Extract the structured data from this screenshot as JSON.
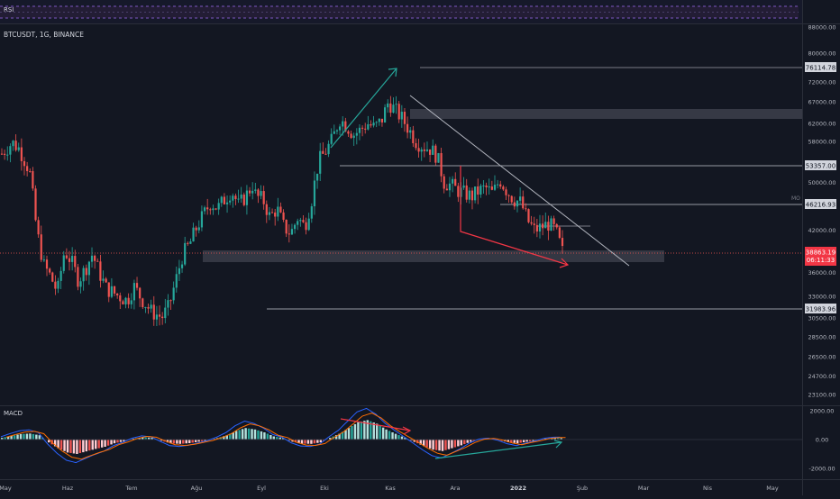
{
  "rsi": {
    "label": "RSI"
  },
  "symbol": {
    "label": "BTCUSDT, 1G, BINANCE"
  },
  "macd": {
    "label": "MACD"
  },
  "last_price": {
    "value": "38863.19",
    "countdown": "06:11:33"
  },
  "mo_label": "MO",
  "chart_data": [
    {
      "type": "candlestick",
      "title": "BTCUSDT, 1G, BINANCE",
      "x_ticks": [
        "May",
        "Haz",
        "Tem",
        "Ağu",
        "Eyl",
        "Eki",
        "Kas",
        "Ara",
        "2022",
        "Şub",
        "Mar",
        "Nis",
        "May"
      ],
      "y_ticks": [
        "88000.00",
        "80000.00",
        "72000.00",
        "67000.00",
        "62000.00",
        "58000.00",
        "50000.00",
        "46000.00",
        "42000.00",
        "39000.00",
        "36000.00",
        "33000.00",
        "30500.00",
        "28500.00",
        "26500.00",
        "24700.00",
        "23100.00"
      ],
      "log_scale": true,
      "ylim": [
        22000,
        92000
      ],
      "horizontal_levels": [
        "76114.78",
        "53357.00",
        "46216.93",
        "31983.96"
      ],
      "zones": [
        [
          61500,
          65500
        ],
        [
          37100,
          39200
        ]
      ],
      "price_path": [
        [
          0,
          55500
        ],
        [
          3,
          57800
        ],
        [
          5,
          56500
        ],
        [
          8,
          52000
        ],
        [
          10,
          42000
        ],
        [
          12,
          37000
        ],
        [
          14,
          35500
        ],
        [
          16,
          33500
        ],
        [
          18,
          39000
        ],
        [
          20,
          37500
        ],
        [
          22,
          35000
        ],
        [
          24,
          36500
        ],
        [
          26,
          38500
        ],
        [
          28,
          36000
        ],
        [
          30,
          34000
        ],
        [
          33,
          33200
        ],
        [
          36,
          32500
        ],
        [
          38,
          34200
        ],
        [
          40,
          32800
        ],
        [
          43,
          31200
        ],
        [
          46,
          30600
        ],
        [
          48,
          31800
        ],
        [
          50,
          35000
        ],
        [
          52,
          38500
        ],
        [
          54,
          40000
        ],
        [
          56,
          42500
        ],
        [
          58,
          44500
        ],
        [
          60,
          46500
        ],
        [
          62,
          45500
        ],
        [
          64,
          47000
        ],
        [
          66,
          48500
        ],
        [
          68,
          46000
        ],
        [
          70,
          47500
        ],
        [
          72,
          49500
        ],
        [
          73,
          47500
        ],
        [
          75,
          47000
        ],
        [
          77,
          44000
        ],
        [
          79,
          45500
        ],
        [
          81,
          42500
        ],
        [
          83,
          41500
        ],
        [
          85,
          44000
        ],
        [
          87,
          42500
        ],
        [
          89,
          47000
        ],
        [
          91,
          54000
        ],
        [
          93,
          56000
        ],
        [
          95,
          58500
        ],
        [
          97,
          63000
        ],
        [
          99,
          61500
        ],
        [
          101,
          59500
        ],
        [
          103,
          60500
        ],
        [
          105,
          62000
        ],
        [
          107,
          61000
        ],
        [
          109,
          62500
        ],
        [
          111,
          67000
        ],
        [
          113,
          65000
        ],
        [
          115,
          63000
        ],
        [
          117,
          60500
        ],
        [
          119,
          58000
        ],
        [
          121,
          57000
        ],
        [
          123,
          56500
        ],
        [
          125,
          55000
        ],
        [
          127,
          50000
        ],
        [
          129,
          49500
        ],
        [
          131,
          48500
        ],
        [
          133,
          48000
        ],
        [
          135,
          47500
        ],
        [
          137,
          48500
        ],
        [
          139,
          49000
        ],
        [
          141,
          48000
        ],
        [
          143,
          50500
        ],
        [
          145,
          48500
        ],
        [
          147,
          47000
        ],
        [
          149,
          46500
        ],
        [
          151,
          43500
        ],
        [
          153,
          42000
        ],
        [
          155,
          42500
        ],
        [
          157,
          43000
        ],
        [
          159,
          42000
        ],
        [
          161,
          38863
        ]
      ],
      "macd_histogram_ticks": [
        "2000.00",
        "0.00",
        "-2000.00"
      ],
      "macd_histogram": [
        120,
        260,
        380,
        420,
        300,
        -200,
        -600,
        -900,
        -1000,
        -820,
        -650,
        -500,
        -260,
        -120,
        60,
        160,
        120,
        -80,
        -260,
        -300,
        -250,
        -150,
        -50,
        100,
        300,
        600,
        800,
        700,
        500,
        220,
        100,
        -150,
        -280,
        -300,
        -200,
        120,
        400,
        800,
        1200,
        1350,
        1100,
        700,
        400,
        120,
        -160,
        -450,
        -700,
        -800,
        -600,
        -400,
        -150,
        20,
        60,
        -30,
        -180,
        -260,
        -150,
        -60,
        60,
        100
      ]
    }
  ]
}
